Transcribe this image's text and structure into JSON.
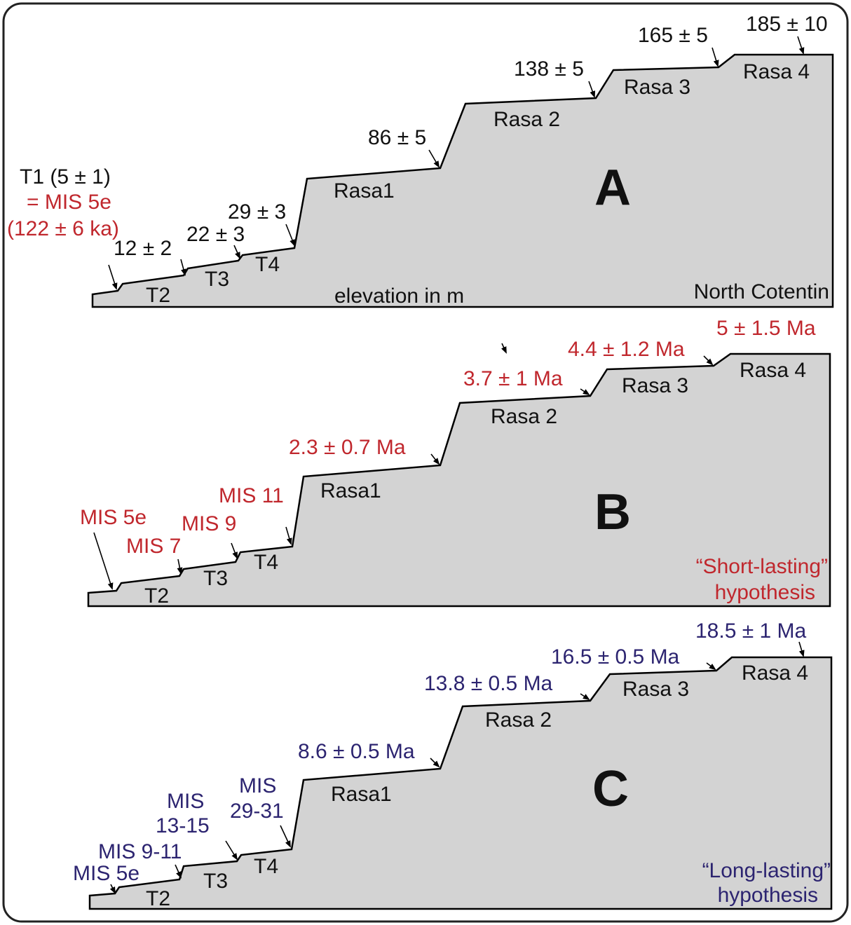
{
  "colors": {
    "profile_fill": "#d3d3d3",
    "outline": "#000000",
    "panel_a_text": "#111111",
    "panel_b_text": "#c0272d",
    "panel_c_text": "#2c2470",
    "frame": "#222222"
  },
  "panels": {
    "a": {
      "letter": "A",
      "region": "North Cotentin",
      "unit_note": "elevation in m",
      "terraces": {
        "t2": "T2",
        "t3": "T3",
        "t4": "T4",
        "r1": "Rasa1",
        "r2": "Rasa 2",
        "r3": "Rasa 3",
        "r4": "Rasa 4"
      },
      "t1": {
        "line1": "T1 (5 ± 1)",
        "line2": "= MIS 5e",
        "line3": "(122 ± 6 ka)"
      },
      "values": {
        "t2": "12 ± 2",
        "t3": "22 ± 3",
        "t4": "29 ± 3",
        "r1": "86 ± 5",
        "r2": "138 ± 5",
        "r3": "165 ± 5",
        "r4": "185 ± 10"
      }
    },
    "b": {
      "letter": "B",
      "hypothesis_line1": "“Short-lasting”",
      "hypothesis_line2": "hypothesis",
      "terraces": {
        "t2": "T2",
        "t3": "T3",
        "t4": "T4",
        "r1": "Rasa1",
        "r2": "Rasa 2",
        "r3": "Rasa 3",
        "r4": "Rasa 4"
      },
      "values": {
        "t1": "MIS 5e",
        "t2": "MIS 7",
        "t3": "MIS 9",
        "t4": "MIS 11",
        "r1": "2.3 ± 0.7 Ma",
        "r2": "3.7 ± 1 Ma",
        "r3": "4.4 ± 1.2 Ma",
        "r4": "5 ± 1.5 Ma"
      }
    },
    "c": {
      "letter": "C",
      "hypothesis_line1": "“Long-lasting”",
      "hypothesis_line2": "hypothesis",
      "terraces": {
        "t2": "T2",
        "t3": "T3",
        "t4": "T4",
        "r1": "Rasa1",
        "r2": "Rasa 2",
        "r3": "Rasa 3",
        "r4": "Rasa 4"
      },
      "values": {
        "t1": "MIS 5e",
        "t2": "MIS 9-11",
        "t3_line1": "MIS",
        "t3_line2": "13-15",
        "t4_line1": "MIS",
        "t4_line2": "29-31",
        "r1": "8.6 ± 0.5 Ma",
        "r2": "13.8 ± 0.5 Ma",
        "r3": "16.5 ± 0.5 Ma",
        "r4": "18.5 ± 1 Ma"
      }
    }
  }
}
